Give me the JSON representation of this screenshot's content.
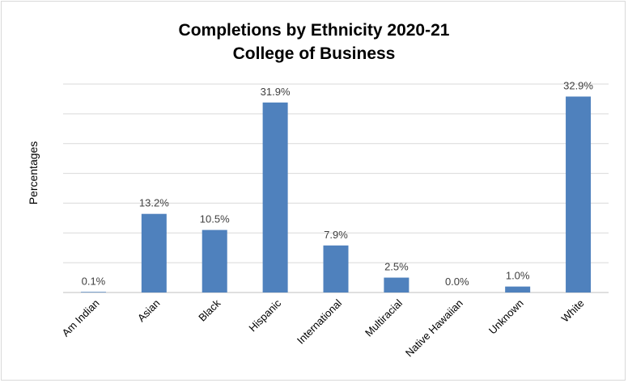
{
  "chart_data": {
    "type": "bar",
    "title": "Completions by Ethnicity 2020-21",
    "subtitle": "College of Business",
    "xlabel": "",
    "ylabel": "Percentages",
    "categories": [
      "Am Indian",
      "Asian",
      "Black",
      "Hispanic",
      "International",
      "Multiracial",
      "Native Hawaiian",
      "Unknown",
      "White"
    ],
    "values": [
      0.1,
      13.2,
      10.5,
      31.9,
      7.9,
      2.5,
      0.0,
      1.0,
      32.9
    ],
    "data_labels": [
      "0.1%",
      "13.2%",
      "10.5%",
      "31.9%",
      "7.9%",
      "2.5%",
      "0.0%",
      "1.0%",
      "32.9%"
    ],
    "ylim": [
      0,
      35
    ],
    "grid": true,
    "legend": false,
    "bar_color": "#4f81bd"
  }
}
